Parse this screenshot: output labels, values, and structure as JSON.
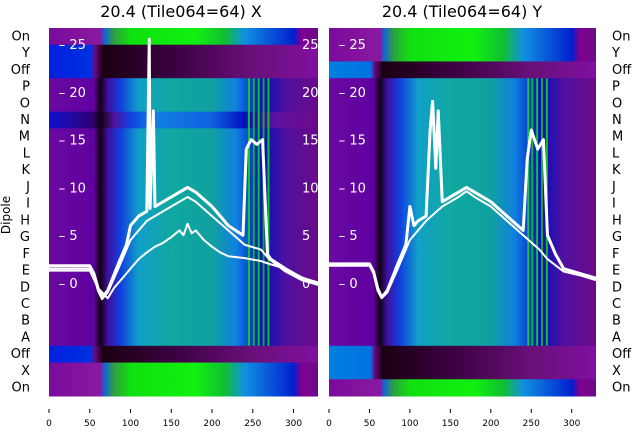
{
  "chart_data": [
    {
      "type": "heatmap",
      "title": "20.4 (Tile064=64) X",
      "ylabel": "Dipole",
      "rows": [
        "On",
        "Y",
        "Off",
        "P",
        "O",
        "N",
        "M",
        "L",
        "K",
        "J",
        "I",
        "H",
        "G",
        "F",
        "E",
        "D",
        "C",
        "B",
        "A",
        "Off",
        "X",
        "On"
      ],
      "row_kinds": [
        "on",
        "off",
        "off",
        "d",
        "d",
        "dn",
        "d",
        "d",
        "d",
        "d",
        "d",
        "d",
        "d",
        "d",
        "d",
        "d",
        "d",
        "d",
        "d",
        "off",
        "on",
        "on"
      ],
      "xlim": [
        0,
        330
      ],
      "xticks": [
        0,
        50,
        100,
        150,
        200,
        250,
        300
      ],
      "overlay_ylim": [
        -3,
        28
      ],
      "overlay_yticks": [
        0,
        5,
        10,
        15,
        20,
        25
      ],
      "green_stripes": [
        244,
        250,
        256,
        262,
        268
      ],
      "lines": [
        {
          "name": "upper",
          "x": [
            0,
            50,
            55,
            60,
            65,
            72,
            85,
            95,
            100,
            110,
            120,
            123,
            124,
            128,
            130,
            140,
            150,
            160,
            170,
            180,
            200,
            220,
            238,
            242,
            248,
            255,
            262,
            268,
            272,
            290,
            310,
            330
          ],
          "y": [
            1.8,
            1.8,
            1.0,
            -0.5,
            -1.5,
            -0.8,
            2,
            4,
            6,
            7,
            7.5,
            25.5,
            7.8,
            18,
            8,
            8.5,
            9,
            9.5,
            10,
            9.5,
            8,
            6,
            5,
            14,
            15,
            14.5,
            15,
            3,
            2.5,
            1.5,
            0.5,
            0
          ]
        },
        {
          "name": "mid",
          "x": [
            0,
            50,
            55,
            60,
            65,
            72,
            85,
            100,
            120,
            140,
            160,
            170,
            180,
            200,
            220,
            240,
            260,
            270,
            290,
            310,
            330
          ],
          "y": [
            1.5,
            1.5,
            0.8,
            -0.8,
            -1.7,
            -1,
            1.5,
            4.5,
            6.5,
            7.5,
            8.5,
            9,
            8.5,
            7,
            5.5,
            4,
            3.5,
            2.5,
            1.2,
            0.3,
            -0.2
          ]
        },
        {
          "name": "lower",
          "x": [
            0,
            50,
            60,
            72,
            80,
            90,
            100,
            110,
            120,
            130,
            140,
            150,
            160,
            165,
            170,
            175,
            180,
            190,
            200,
            210,
            220,
            240,
            260,
            270,
            290,
            310,
            330
          ],
          "y": [
            1.3,
            1.3,
            -0.5,
            -1.6,
            -0.5,
            0.5,
            1.5,
            2.5,
            3.2,
            3.8,
            4.2,
            4.8,
            5.5,
            5,
            6.2,
            5.2,
            5.5,
            4.5,
            3.8,
            3.2,
            2.8,
            2.6,
            2.3,
            2.0,
            1.5,
            0.6,
            0
          ]
        }
      ]
    },
    {
      "type": "heatmap",
      "title": "20.4 (Tile064=64) Y",
      "rows": [
        "On",
        "Y",
        "Off",
        "P",
        "O",
        "N",
        "M",
        "L",
        "K",
        "J",
        "I",
        "H",
        "G",
        "F",
        "E",
        "D",
        "C",
        "B",
        "A",
        "Off",
        "X",
        "On"
      ],
      "row_kinds": [
        "on",
        "on",
        "offb",
        "d",
        "d",
        "d",
        "d",
        "d",
        "d",
        "d",
        "d",
        "d",
        "d",
        "d",
        "d",
        "d",
        "d",
        "d",
        "d",
        "offb",
        "offb",
        "on"
      ],
      "xlim": [
        0,
        330
      ],
      "xticks": [
        0,
        50,
        100,
        150,
        200,
        250,
        300
      ],
      "overlay_ylim": [
        -3,
        28
      ],
      "overlay_yticks": [
        0,
        5,
        10,
        15,
        20,
        25
      ],
      "green_stripes": [
        245,
        250,
        256,
        262,
        268
      ],
      "lines": [
        {
          "name": "upper",
          "x": [
            0,
            50,
            55,
            60,
            65,
            72,
            85,
            95,
            100,
            105,
            110,
            120,
            125,
            128,
            132,
            135,
            140,
            150,
            160,
            170,
            180,
            200,
            220,
            240,
            245,
            250,
            258,
            265,
            270,
            280,
            290,
            310,
            330
          ],
          "y": [
            2,
            2,
            1.2,
            -0.5,
            -1.5,
            -0.8,
            2,
            4,
            8,
            6,
            6.5,
            7,
            16,
            19,
            12,
            18,
            8.5,
            9,
            9.5,
            10,
            9.5,
            8.5,
            7,
            5.5,
            13,
            16,
            14,
            15,
            5,
            3,
            1.5,
            1,
            0.5
          ]
        },
        {
          "name": "mid",
          "x": [
            0,
            50,
            55,
            60,
            65,
            72,
            85,
            100,
            120,
            140,
            160,
            170,
            180,
            200,
            220,
            240,
            260,
            270,
            290,
            310,
            330
          ],
          "y": [
            1.8,
            1.8,
            1,
            -0.8,
            -1.6,
            -1,
            1.5,
            4.5,
            6.5,
            8,
            9,
            9.6,
            9,
            8,
            6.5,
            5,
            3.5,
            2.5,
            1.2,
            0.8,
            0.3
          ]
        }
      ]
    }
  ]
}
